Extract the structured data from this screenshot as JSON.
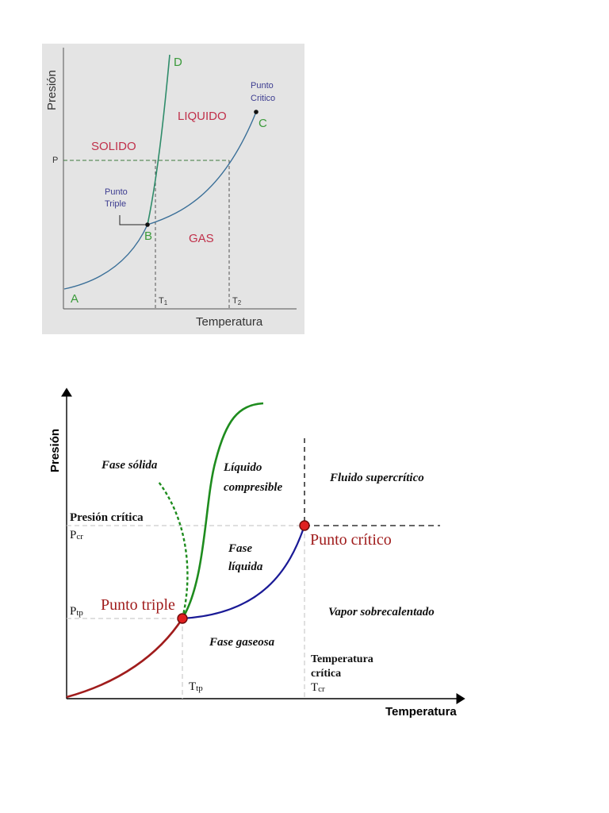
{
  "top_diagram": {
    "y_axis_label": "Presión",
    "x_axis_label": "Temperatura",
    "pressure_tick": "P",
    "temperature_ticks": [
      {
        "base": "T",
        "sub": "1"
      },
      {
        "base": "T",
        "sub": "2"
      }
    ],
    "regions": {
      "solid": "SOLIDO",
      "liquid": "LIQUIDO",
      "gas": "GAS"
    },
    "points": {
      "a": "A",
      "b": "B",
      "c": "C",
      "d": "D"
    },
    "triple_point_label": [
      "Punto",
      "Triple"
    ],
    "critical_point_label": [
      "Punto",
      "Critico"
    ],
    "colors": {
      "background": "#e4e4e4",
      "curve": "#3a6f98",
      "fusion_curve": "#2f8c6a",
      "region_text": "#c0304a",
      "point_letters": "#3a9a3a",
      "annotation_text": "#3c3c90",
      "guide": "#3c7a3c"
    }
  },
  "bottom_diagram": {
    "y_axis_label": "Presión",
    "x_axis_label": "Temperatura",
    "regions": {
      "solid": "Fase sólida",
      "compressible_liquid": [
        "Líquido",
        "compresible"
      ],
      "supercritical": "Fluido supercrítico",
      "liquid": [
        "Fase",
        "líquida"
      ],
      "superheated_vapor": "Vapor sobrecalentado",
      "gas": "Fase gaseosa"
    },
    "critical_pressure_label": "Presión crítica",
    "p_cr": {
      "base": "P",
      "sub": "cr"
    },
    "p_tp": {
      "base": "P",
      "sub": "tp"
    },
    "t_tp": {
      "base": "T",
      "sub": "tp"
    },
    "t_cr": {
      "base": "T",
      "sub": "cr"
    },
    "critical_temperature_label": [
      "Temperatura",
      "crítica"
    ],
    "triple_point": "Punto triple",
    "critical_point": "Punto crítico",
    "colors": {
      "sublimation_curve": "#a01c1c",
      "fusion_curve": "#1e8c1e",
      "vaporization_curve": "#1a1a96",
      "point_fill": "#e02020",
      "point_label": "#a01c1c",
      "guide": "#cccccc"
    }
  }
}
